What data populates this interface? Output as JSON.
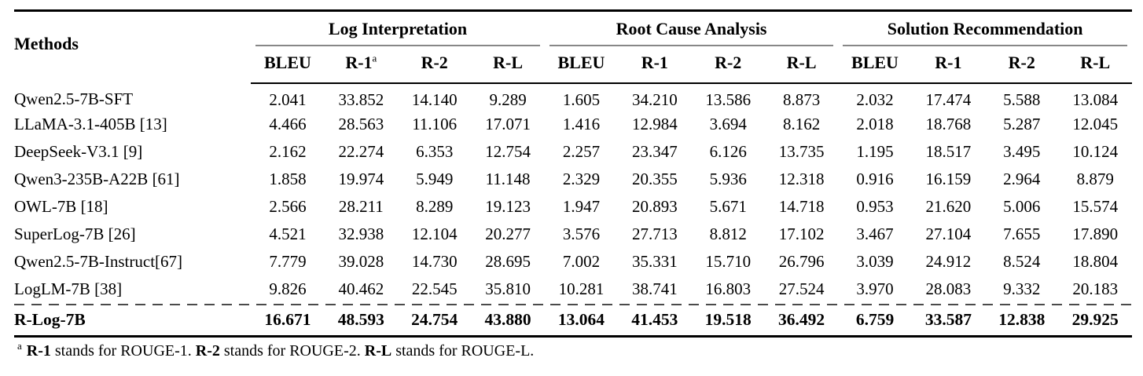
{
  "table": {
    "methods_header": "Methods",
    "groups": [
      {
        "label": "Log Interpretation"
      },
      {
        "label": "Root Cause Analysis"
      },
      {
        "label": "Solution Recommendation"
      }
    ],
    "metric_headers": [
      {
        "label": "BLEU",
        "sup": ""
      },
      {
        "label": "R-1",
        "sup": "a"
      },
      {
        "label": "R-2",
        "sup": ""
      },
      {
        "label": "R-L",
        "sup": ""
      },
      {
        "label": "BLEU",
        "sup": ""
      },
      {
        "label": "R-1",
        "sup": ""
      },
      {
        "label": "R-2",
        "sup": ""
      },
      {
        "label": "R-L",
        "sup": ""
      },
      {
        "label": "BLEU",
        "sup": ""
      },
      {
        "label": "R-1",
        "sup": ""
      },
      {
        "label": "R-2",
        "sup": ""
      },
      {
        "label": "R-L",
        "sup": ""
      }
    ],
    "rows": [
      {
        "method": "Qwen2.5-7B-SFT",
        "values": [
          "2.041",
          "33.852",
          "14.140",
          "9.289",
          "1.605",
          "34.210",
          "13.586",
          "8.873",
          "2.032",
          "17.474",
          "5.588",
          "13.084"
        ]
      },
      {
        "method": "LLaMA-3.1-405B [13]",
        "values": [
          "4.466",
          "28.563",
          "11.106",
          "17.071",
          "1.416",
          "12.984",
          "3.694",
          "8.162",
          "2.018",
          "18.768",
          "5.287",
          "12.045"
        ]
      },
      {
        "method": "DeepSeek-V3.1 [9]",
        "values": [
          "2.162",
          "22.274",
          "6.353",
          "12.754",
          "2.257",
          "23.347",
          "6.126",
          "13.735",
          "1.195",
          "18.517",
          "3.495",
          "10.124"
        ]
      },
      {
        "method": "Qwen3-235B-A22B [61]",
        "values": [
          "1.858",
          "19.974",
          "5.949",
          "11.148",
          "2.329",
          "20.355",
          "5.936",
          "12.318",
          "0.916",
          "16.159",
          "2.964",
          "8.879"
        ]
      },
      {
        "method": "OWL-7B [18]",
        "values": [
          "2.566",
          "28.211",
          "8.289",
          "19.123",
          "1.947",
          "20.893",
          "5.671",
          "14.718",
          "0.953",
          "21.620",
          "5.006",
          "15.574"
        ]
      },
      {
        "method": "SuperLog-7B [26]",
        "values": [
          "4.521",
          "32.938",
          "12.104",
          "20.277",
          "3.576",
          "27.713",
          "8.812",
          "17.102",
          "3.467",
          "27.104",
          "7.655",
          "17.890"
        ]
      },
      {
        "method": "Qwen2.5-7B-Instruct[67]",
        "values": [
          "7.779",
          "39.028",
          "14.730",
          "28.695",
          "7.002",
          "35.331",
          "15.710",
          "26.796",
          "3.039",
          "24.912",
          "8.524",
          "18.804"
        ]
      },
      {
        "method": "LogLM-7B [38]",
        "values": [
          "9.826",
          "40.462",
          "22.545",
          "35.810",
          "10.281",
          "38.741",
          "16.803",
          "27.524",
          "3.970",
          "28.083",
          "9.332",
          "20.183"
        ]
      }
    ],
    "highlight_row": {
      "method": "R-Log-7B",
      "values": [
        "16.671",
        "48.593",
        "24.754",
        "43.880",
        "13.064",
        "41.453",
        "19.518",
        "36.492",
        "6.759",
        "33.587",
        "12.838",
        "29.925"
      ]
    },
    "footnote": {
      "marker": "a",
      "segments": [
        {
          "text": "R-1",
          "bold": true
        },
        {
          "text": " stands for ROUGE-1. ",
          "bold": false
        },
        {
          "text": "R-2",
          "bold": true
        },
        {
          "text": " stands for ROUGE-2. ",
          "bold": false
        },
        {
          "text": "R-L",
          "bold": true
        },
        {
          "text": " stands for ROUGE-L.",
          "bold": false
        }
      ]
    }
  },
  "colors": {
    "rule": "#000000",
    "cmidrule": "#878787",
    "dashed_rule": "#4a4a4a",
    "text": "#000000",
    "background": "#ffffff"
  }
}
